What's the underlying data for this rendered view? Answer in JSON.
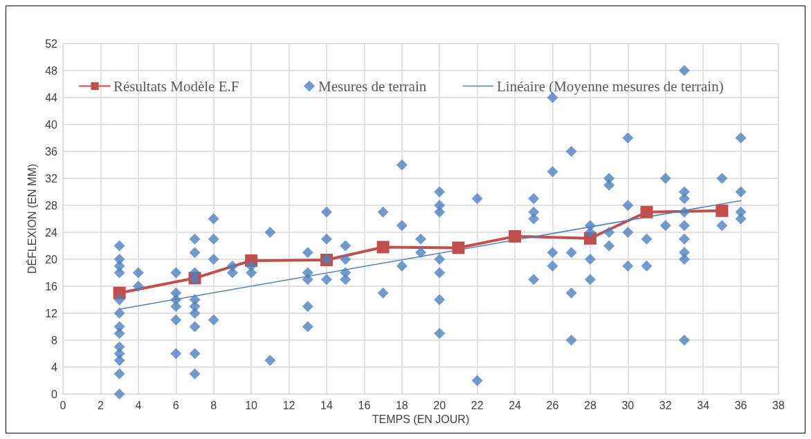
{
  "chart_data": {
    "type": "scatter",
    "xlabel": "TEMPS (EN JOUR)",
    "ylabel": "DÉFLEXION (EN MM)",
    "xlim": [
      0,
      38
    ],
    "xticks": [
      0,
      2,
      4,
      6,
      8,
      10,
      12,
      14,
      16,
      18,
      20,
      22,
      24,
      26,
      28,
      30,
      32,
      34,
      36,
      38
    ],
    "ylim": [
      0,
      52
    ],
    "yticks": [
      0,
      4,
      8,
      12,
      16,
      20,
      24,
      28,
      32,
      36,
      40,
      44,
      48,
      52
    ],
    "grid": true,
    "legend": "top",
    "series": [
      {
        "name": "Résultats Modèle E.F",
        "type": "line",
        "color": "#c0504d",
        "marker": "square",
        "line_style": "solid",
        "x": [
          3,
          7,
          10,
          14,
          17,
          21,
          24,
          28,
          31,
          35
        ],
        "values": [
          15,
          17.2,
          19.8,
          19.9,
          21.8,
          21.7,
          23.4,
          23.1,
          27,
          27.2
        ]
      },
      {
        "name": "Mesures de terrain",
        "color": "#4f81bd",
        "marker": "diamond",
        "x": [
          3,
          3,
          3,
          3,
          3,
          3,
          3,
          3,
          3,
          3,
          3,
          3,
          3,
          4,
          4,
          6,
          6,
          6,
          6,
          6,
          6,
          7,
          7,
          7,
          7,
          7,
          7,
          7,
          7,
          7,
          7,
          8,
          8,
          8,
          8,
          9,
          9,
          10,
          10,
          11,
          11,
          13,
          13,
          13,
          13,
          13,
          14,
          14,
          14,
          14,
          15,
          15,
          15,
          15,
          17,
          17,
          18,
          18,
          18,
          19,
          19,
          20,
          20,
          20,
          20,
          20,
          20,
          20,
          22,
          22,
          25,
          25,
          25,
          25,
          26,
          26,
          26,
          26,
          27,
          27,
          27,
          27,
          28,
          28,
          28,
          28,
          29,
          29,
          29,
          29,
          30,
          30,
          30,
          30,
          31,
          31,
          32,
          32,
          33,
          33,
          33,
          33,
          33,
          33,
          33,
          33,
          33,
          35,
          35,
          36,
          36,
          36,
          36
        ],
        "values": [
          22,
          20,
          19,
          18,
          14,
          12,
          10,
          9,
          7,
          6,
          5,
          3,
          0,
          18,
          16,
          18,
          15,
          14,
          13,
          11,
          6,
          23,
          21,
          18,
          17,
          14,
          13,
          12,
          10,
          6,
          3,
          26,
          23,
          20,
          11,
          19,
          18,
          19,
          18,
          24,
          5,
          21,
          18,
          17,
          13,
          10,
          27,
          23,
          20,
          17,
          22,
          20,
          18,
          17,
          27,
          15,
          34,
          25,
          19,
          23,
          21,
          30,
          28,
          27,
          20,
          18,
          14,
          9,
          29,
          2,
          29,
          27,
          26,
          17,
          44,
          33,
          21,
          19,
          36,
          21,
          15,
          8,
          25,
          24,
          20,
          17,
          32,
          31,
          24,
          22,
          38,
          28,
          24,
          19,
          23,
          19,
          32,
          25,
          48,
          30,
          29,
          27,
          25,
          23,
          21,
          20,
          8,
          32,
          25,
          38,
          30,
          27,
          26
        ]
      },
      {
        "name": "Linéaire (Moyenne mesures de terrain)",
        "type": "line",
        "color": "#4f81bd",
        "marker": "none",
        "line_style": "solid",
        "x": [
          3,
          36
        ],
        "values": [
          12.6,
          28.7
        ]
      }
    ]
  }
}
